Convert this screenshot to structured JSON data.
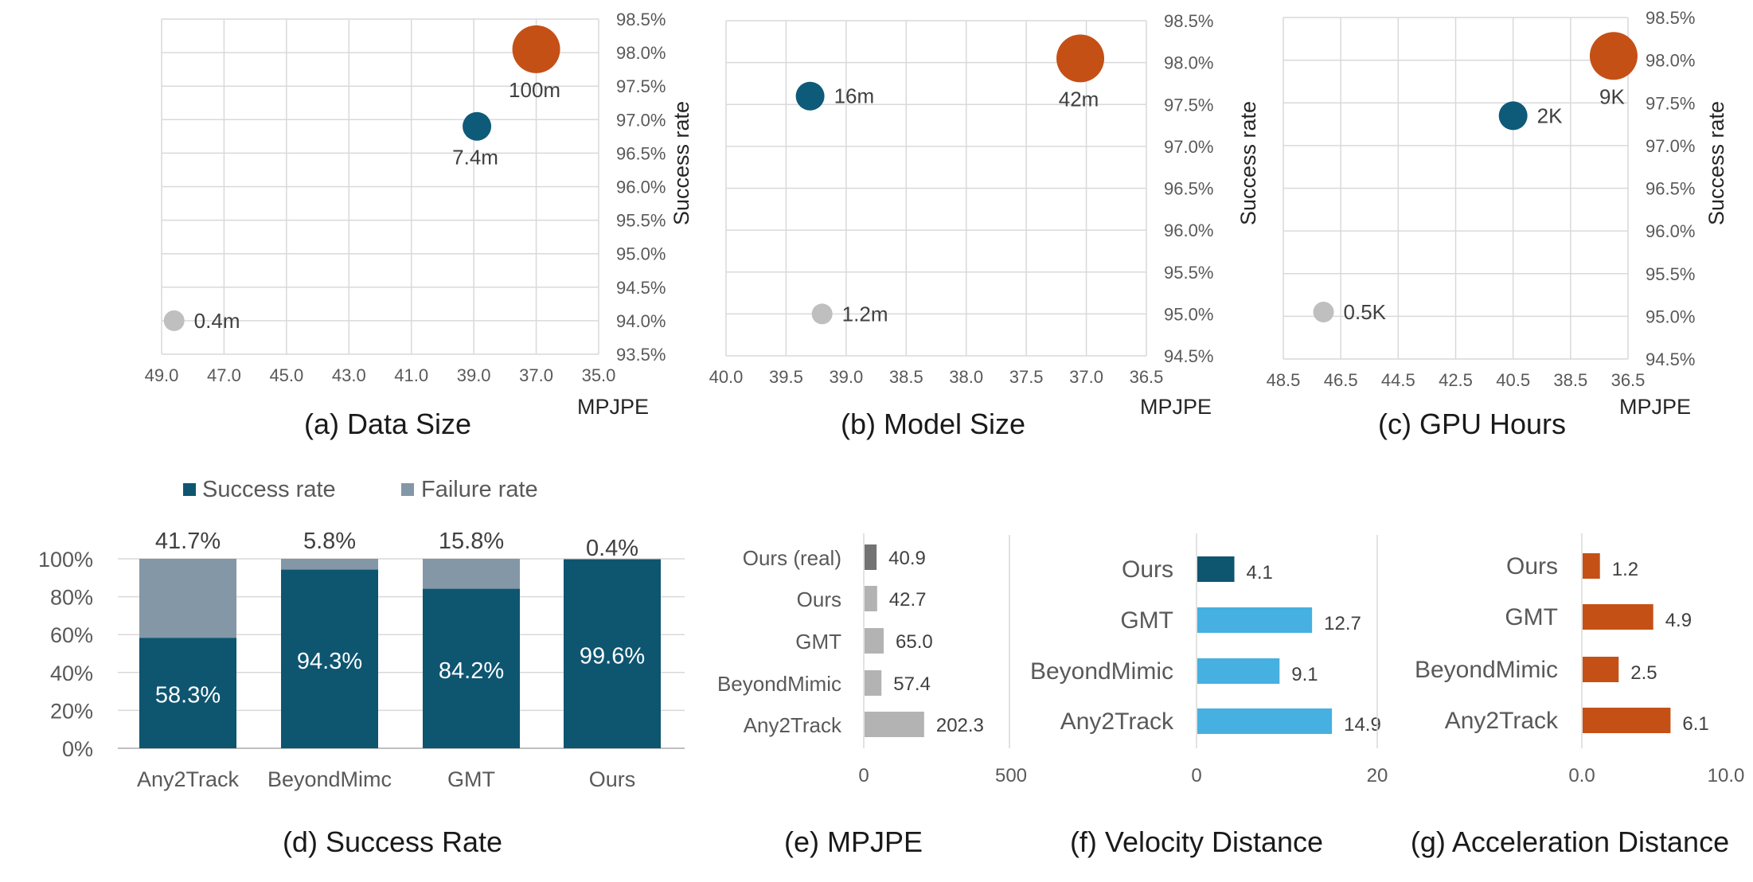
{
  "chart_data": [
    {
      "id": "a",
      "type": "scatter",
      "caption": "(a) Data Size",
      "xlabel": "MPJPE",
      "ylabel": "Success rate",
      "x_reversed": true,
      "xlim": [
        49.0,
        35.0
      ],
      "ylim": [
        93.5,
        98.5
      ],
      "xticks": [
        "49.0",
        "47.0",
        "45.0",
        "43.0",
        "41.0",
        "39.0",
        "37.0",
        "35.0"
      ],
      "yticks": [
        "93.5%",
        "94.0%",
        "94.5%",
        "95.0%",
        "95.5%",
        "96.0%",
        "96.5%",
        "97.0%",
        "97.5%",
        "98.0%",
        "98.5%"
      ],
      "points": [
        {
          "label": "0.4m",
          "x": 48.6,
          "y": 94.0,
          "size": 0.4,
          "color": "#bfbfbf",
          "label_pos": "right"
        },
        {
          "label": "7.4m",
          "x": 38.9,
          "y": 96.9,
          "size": 7.4,
          "color": "#0e5a79",
          "label_pos": "below"
        },
        {
          "label": "100m",
          "x": 37.0,
          "y": 98.05,
          "size": 100,
          "color": "#c55016",
          "label_pos": "below"
        }
      ]
    },
    {
      "id": "b",
      "type": "scatter",
      "caption": "(b) Model Size",
      "xlabel": "MPJPE",
      "ylabel": "Success rate",
      "x_reversed": true,
      "xlim": [
        40.0,
        36.5
      ],
      "ylim": [
        94.5,
        98.5
      ],
      "xticks": [
        "40.0",
        "39.5",
        "39.0",
        "38.5",
        "38.0",
        "37.5",
        "37.0",
        "36.5"
      ],
      "yticks": [
        "94.5%",
        "95.0%",
        "95.5%",
        "96.0%",
        "96.5%",
        "97.0%",
        "97.5%",
        "98.0%",
        "98.5%"
      ],
      "points": [
        {
          "label": "1.2m",
          "x": 39.2,
          "y": 95.0,
          "size": 1.2,
          "color": "#bfbfbf",
          "label_pos": "right"
        },
        {
          "label": "16m",
          "x": 39.3,
          "y": 97.6,
          "size": 16,
          "color": "#0e5a79",
          "label_pos": "right"
        },
        {
          "label": "42m",
          "x": 37.05,
          "y": 98.05,
          "size": 42,
          "color": "#c55016",
          "label_pos": "below"
        }
      ]
    },
    {
      "id": "c",
      "type": "scatter",
      "caption": "(c) GPU Hours",
      "xlabel": "MPJPE",
      "ylabel": "Success rate",
      "x_reversed": true,
      "xlim": [
        48.5,
        36.5
      ],
      "ylim": [
        94.5,
        98.5
      ],
      "xticks": [
        "48.5",
        "46.5",
        "44.5",
        "42.5",
        "40.5",
        "38.5",
        "36.5"
      ],
      "yticks": [
        "94.5%",
        "95.0%",
        "95.5%",
        "96.0%",
        "96.5%",
        "97.0%",
        "97.5%",
        "98.0%",
        "98.5%"
      ],
      "points": [
        {
          "label": "0.5K",
          "x": 47.1,
          "y": 95.05,
          "size": 0.5,
          "color": "#bfbfbf",
          "label_pos": "right"
        },
        {
          "label": "2K",
          "x": 40.5,
          "y": 97.35,
          "size": 2,
          "color": "#0e5a79",
          "label_pos": "right"
        },
        {
          "label": "9K",
          "x": 37.0,
          "y": 98.05,
          "size": 9,
          "color": "#c55016",
          "label_pos": "below"
        }
      ]
    },
    {
      "id": "d",
      "type": "bar",
      "stacked": true,
      "caption": "(d) Success Rate",
      "categories": [
        "Any2Track",
        "BeyondMimc",
        "GMT",
        "Ours"
      ],
      "ylim": [
        0,
        100
      ],
      "yticks": [
        "0%",
        "20%",
        "40%",
        "60%",
        "80%",
        "100%"
      ],
      "legend_position": "top",
      "series": [
        {
          "name": "Success rate",
          "color": "#0e5570",
          "values": [
            58.3,
            94.3,
            84.2,
            99.6
          ],
          "labels": [
            "58.3%",
            "94.3%",
            "84.2%",
            "99.6%"
          ]
        },
        {
          "name": "Failure rate",
          "color": "#8497a6",
          "values": [
            41.7,
            5.8,
            15.8,
            0.4
          ],
          "labels": [
            "41.7%",
            "5.8%",
            "15.8%",
            "0.4%"
          ]
        }
      ]
    },
    {
      "id": "e",
      "type": "bar",
      "orientation": "horizontal",
      "caption": "(e) MPJPE",
      "categories": [
        "Ours (real)",
        "Ours",
        "GMT",
        "BeyondMimic",
        "Any2Track"
      ],
      "values": [
        40.9,
        42.7,
        65.0,
        57.4,
        202.3
      ],
      "value_labels": [
        "40.9",
        "42.7",
        "65.0",
        "57.4",
        "202.3"
      ],
      "colors": [
        "#737373",
        "#b3b3b3",
        "#b3b3b3",
        "#b3b3b3",
        "#b3b3b3"
      ],
      "xlim": [
        0,
        500
      ],
      "xticks": [
        "0",
        "500"
      ]
    },
    {
      "id": "f",
      "type": "bar",
      "orientation": "horizontal",
      "caption": "(f) Velocity Distance",
      "categories": [
        "Ours",
        "GMT",
        "BeyondMimic",
        "Any2Track"
      ],
      "values": [
        4.1,
        12.7,
        9.1,
        14.9
      ],
      "value_labels": [
        "4.1",
        "12.7",
        "9.1",
        "14.9"
      ],
      "colors": [
        "#0e5570",
        "#46b0e0",
        "#46b0e0",
        "#46b0e0"
      ],
      "xlim": [
        0,
        20
      ],
      "xticks": [
        "0",
        "20"
      ]
    },
    {
      "id": "g",
      "type": "bar",
      "orientation": "horizontal",
      "caption": "(g) Acceleration Distance",
      "categories": [
        "Ours",
        "GMT",
        "BeyondMimic",
        "Any2Track"
      ],
      "values": [
        1.2,
        4.9,
        2.5,
        6.1
      ],
      "value_labels": [
        "1.2",
        "4.9",
        "2.5",
        "6.1"
      ],
      "colors": [
        "#c55016",
        "#c55016",
        "#c55016",
        "#c55016"
      ],
      "xlim": [
        0.0,
        10.0
      ],
      "xticks": [
        "0.0",
        "10.0"
      ]
    }
  ]
}
